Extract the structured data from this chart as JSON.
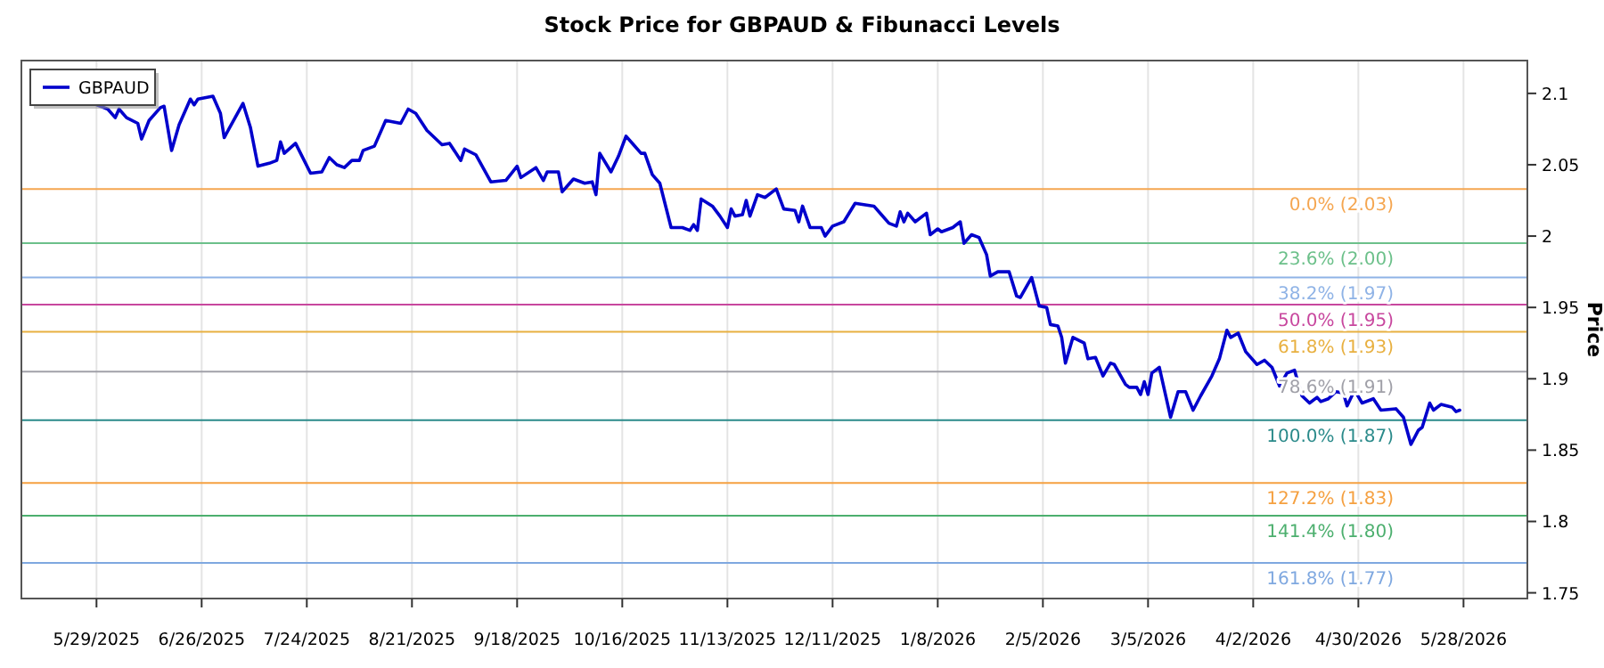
{
  "chart_data": {
    "type": "line",
    "title": "Stock Price for GBPAUD & Fibunacci Levels",
    "ylabel": "Price",
    "x": [
      "2025-05-29",
      "2025-06-01",
      "2025-06-03",
      "2025-06-04",
      "2025-06-06",
      "2025-06-09",
      "2025-06-10",
      "2025-06-12",
      "2025-06-15",
      "2025-06-16",
      "2025-06-18",
      "2025-06-20",
      "2025-06-23",
      "2025-06-24",
      "2025-06-25",
      "2025-06-29",
      "2025-07-01",
      "2025-07-02",
      "2025-07-07",
      "2025-07-09",
      "2025-07-11",
      "2025-07-14",
      "2025-07-16",
      "2025-07-17",
      "2025-07-18",
      "2025-07-21",
      "2025-07-25",
      "2025-07-28",
      "2025-07-30",
      "2025-08-01",
      "2025-08-03",
      "2025-08-05",
      "2025-08-07",
      "2025-08-08",
      "2025-08-11",
      "2025-08-14",
      "2025-08-18",
      "2025-08-20",
      "2025-08-22",
      "2025-08-25",
      "2025-08-29",
      "2025-08-31",
      "2025-09-03",
      "2025-09-04",
      "2025-09-07",
      "2025-09-11",
      "2025-09-15",
      "2025-09-18",
      "2025-09-19",
      "2025-09-23",
      "2025-09-25",
      "2025-09-26",
      "2025-09-29",
      "2025-09-30",
      "2025-10-02",
      "2025-10-03",
      "2025-10-06",
      "2025-10-08",
      "2025-10-09",
      "2025-10-10",
      "2025-10-13",
      "2025-10-15",
      "2025-10-17",
      "2025-10-19",
      "2025-10-21",
      "2025-10-22",
      "2025-10-24",
      "2025-10-26",
      "2025-10-29",
      "2025-11-01",
      "2025-11-03",
      "2025-11-04",
      "2025-11-05",
      "2025-11-06",
      "2025-11-09",
      "2025-11-11",
      "2025-11-13",
      "2025-11-14",
      "2025-11-15",
      "2025-11-17",
      "2025-11-18",
      "2025-11-19",
      "2025-11-21",
      "2025-11-23",
      "2025-11-26",
      "2025-11-28",
      "2025-12-01",
      "2025-12-02",
      "2025-12-03",
      "2025-12-05",
      "2025-12-08",
      "2025-12-09",
      "2025-12-11",
      "2025-12-14",
      "2025-12-17",
      "2025-12-22",
      "2025-12-24",
      "2025-12-26",
      "2025-12-28",
      "2025-12-29",
      "2025-12-30",
      "2025-12-31",
      "2026-01-02",
      "2026-01-05",
      "2026-01-06",
      "2026-01-08",
      "2026-01-09",
      "2026-01-12",
      "2026-01-14",
      "2026-01-15",
      "2026-01-17",
      "2026-01-19",
      "2026-01-21",
      "2026-01-22",
      "2026-01-24",
      "2026-01-27",
      "2026-01-29",
      "2026-01-30",
      "2026-02-02",
      "2026-02-04",
      "2026-02-06",
      "2026-02-07",
      "2026-02-09",
      "2026-02-10",
      "2026-02-11",
      "2026-02-13",
      "2026-02-16",
      "2026-02-17",
      "2026-02-19",
      "2026-02-21",
      "2026-02-23",
      "2026-02-24",
      "2026-02-27",
      "2026-02-28",
      "2026-03-02",
      "2026-03-03",
      "2026-03-04",
      "2026-03-05",
      "2026-03-06",
      "2026-03-08",
      "2026-03-11",
      "2026-03-13",
      "2026-03-15",
      "2026-03-17",
      "2026-03-19",
      "2026-03-22",
      "2026-03-24",
      "2026-03-26",
      "2026-03-27",
      "2026-03-29",
      "2026-03-31",
      "2026-04-03",
      "2026-04-05",
      "2026-04-07",
      "2026-04-09",
      "2026-04-11",
      "2026-04-13",
      "2026-04-15",
      "2026-04-17",
      "2026-04-19",
      "2026-04-20",
      "2026-04-22",
      "2026-04-24",
      "2026-04-26",
      "2026-04-27",
      "2026-04-29",
      "2026-05-01",
      "2026-05-04",
      "2026-05-06",
      "2026-05-10",
      "2026-05-12",
      "2026-05-14",
      "2026-05-16",
      "2026-05-17",
      "2026-05-19",
      "2026-05-20",
      "2026-05-22",
      "2026-05-25",
      "2026-05-26",
      "2026-05-27"
    ],
    "series": [
      {
        "name": "GBPAUD",
        "color": "#0000cc",
        "values": [
          2.092,
          2.089,
          2.083,
          2.089,
          2.083,
          2.079,
          2.068,
          2.081,
          2.09,
          2.091,
          2.06,
          2.078,
          2.096,
          2.092,
          2.096,
          2.098,
          2.086,
          2.069,
          2.093,
          2.076,
          2.049,
          2.051,
          2.053,
          2.066,
          2.058,
          2.065,
          2.044,
          2.045,
          2.055,
          2.05,
          2.048,
          2.053,
          2.053,
          2.06,
          2.063,
          2.081,
          2.079,
          2.089,
          2.086,
          2.074,
          2.064,
          2.065,
          2.053,
          2.061,
          2.057,
          2.038,
          2.039,
          2.049,
          2.041,
          2.048,
          2.039,
          2.045,
          2.045,
          2.031,
          2.037,
          2.04,
          2.037,
          2.038,
          2.029,
          2.058,
          2.045,
          2.056,
          2.07,
          2.064,
          2.058,
          2.058,
          2.043,
          2.037,
          2.006,
          2.006,
          2.004,
          2.008,
          2.004,
          2.026,
          2.021,
          2.014,
          2.006,
          2.019,
          2.014,
          2.015,
          2.025,
          2.014,
          2.029,
          2.027,
          2.033,
          2.019,
          2.018,
          2.01,
          2.021,
          2.006,
          2.006,
          2.0,
          2.007,
          2.01,
          2.023,
          2.021,
          2.015,
          2.009,
          2.007,
          2.017,
          2.01,
          2.016,
          2.01,
          2.016,
          2.001,
          2.005,
          2.003,
          2.006,
          2.01,
          1.995,
          2.001,
          1.999,
          1.987,
          1.972,
          1.975,
          1.975,
          1.958,
          1.957,
          1.971,
          1.951,
          1.95,
          1.938,
          1.937,
          1.929,
          1.911,
          1.929,
          1.925,
          1.914,
          1.915,
          1.902,
          1.911,
          1.91,
          1.896,
          1.894,
          1.894,
          1.889,
          1.898,
          1.889,
          1.904,
          1.908,
          1.873,
          1.891,
          1.891,
          1.878,
          1.888,
          1.902,
          1.914,
          1.934,
          1.929,
          1.932,
          1.919,
          1.91,
          1.913,
          1.908,
          1.895,
          1.904,
          1.906,
          1.888,
          1.883,
          1.887,
          1.884,
          1.886,
          1.891,
          1.89,
          1.881,
          1.892,
          1.883,
          1.886,
          1.878,
          1.879,
          1.873,
          1.854,
          1.864,
          1.866,
          1.883,
          1.878,
          1.882,
          1.88,
          1.877,
          1.878
        ]
      }
    ],
    "xlim": [
      "2025-05-09",
      "2026-06-14"
    ],
    "xticks": [
      {
        "value": "2025-05-29",
        "label": "5/29/2025"
      },
      {
        "value": "2025-06-26",
        "label": "6/26/2025"
      },
      {
        "value": "2025-07-24",
        "label": "7/24/2025"
      },
      {
        "value": "2025-08-21",
        "label": "8/21/2025"
      },
      {
        "value": "2025-09-18",
        "label": "9/18/2025"
      },
      {
        "value": "2025-10-16",
        "label": "10/16/2025"
      },
      {
        "value": "2025-11-13",
        "label": "11/13/2025"
      },
      {
        "value": "2025-12-11",
        "label": "12/11/2025"
      },
      {
        "value": "2026-01-08",
        "label": "1/8/2026"
      },
      {
        "value": "2026-02-05",
        "label": "2/5/2026"
      },
      {
        "value": "2026-03-05",
        "label": "3/5/2026"
      },
      {
        "value": "2026-04-02",
        "label": "4/2/2026"
      },
      {
        "value": "2026-04-30",
        "label": "4/30/2026"
      },
      {
        "value": "2026-05-28",
        "label": "5/28/2026"
      }
    ],
    "ylim": [
      1.746,
      2.123
    ],
    "yticks": [
      1.75,
      1.8,
      1.85,
      1.9,
      1.95,
      2,
      2.05,
      2.1
    ],
    "ref_lines": [
      {
        "axis": "y",
        "value": 2.033,
        "label": "0.0% (2.03)",
        "color": "#f5a650"
      },
      {
        "axis": "y",
        "value": 1.995,
        "label": "23.6% (2.00)",
        "color": "#6cc08a"
      },
      {
        "axis": "y",
        "value": 1.971,
        "label": "38.2% (1.97)",
        "color": "#8fb3e6"
      },
      {
        "axis": "y",
        "value": 1.952,
        "label": "50.0% (1.95)",
        "color": "#c8479e"
      },
      {
        "axis": "y",
        "value": 1.933,
        "label": "61.8% (1.93)",
        "color": "#e8b040"
      },
      {
        "axis": "y",
        "value": 1.905,
        "label": "78.6% (1.91)",
        "color": "#a0a0a8"
      },
      {
        "axis": "y",
        "value": 1.871,
        "label": "100.0% (1.87)",
        "color": "#2a8a8a"
      },
      {
        "axis": "y",
        "value": 1.827,
        "label": "127.2% (1.83)",
        "color": "#f5a040"
      },
      {
        "axis": "y",
        "value": 1.804,
        "label": "141.4% (1.80)",
        "color": "#4caf6e"
      },
      {
        "axis": "y",
        "value": 1.771,
        "label": "161.8% (1.77)",
        "color": "#7fa8e0"
      }
    ],
    "grid": "x",
    "legend": "top left",
    "line_style": "solid",
    "marker": "none"
  }
}
